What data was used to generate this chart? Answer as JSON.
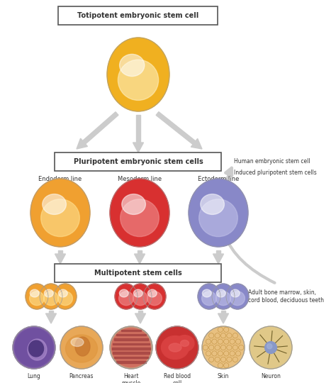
{
  "background_color": "#ffffff",
  "title_box": "Totipotent embryonic stem cell",
  "pluripotent_box": "Pluripotent embryonic stem cells",
  "multipotent_box": "Multipotent stem cells",
  "endoderm_label": "Endoderm line",
  "mesoderm_label": "Mesoderm line",
  "ectoderm_label": "Ectoderm line",
  "human_embryonic_label": "Human embryonic stem cell",
  "induced_label": "Induced pluripotent stem cells",
  "adult_label": "Adult bone marrow, skin,\ncord blood, deciduous teeth",
  "cell_labels": [
    "Lung",
    "Pancreas",
    "Heart\nmuscle",
    "Red blood\ncell",
    "Skin",
    "Neuron"
  ],
  "arrow_color": "#CCCCCC",
  "arrow_edge": "#AAAAAA",
  "box_edge_color": "#555555",
  "label_color": "#333333",
  "totipotent_base": "#F0B020",
  "totipotent_mid": "#E89020",
  "totipotent_hi": "#FFF0C0",
  "endoderm_base": "#F0A030",
  "endoderm_mid": "#E07820",
  "endoderm_hi": "#FFE090",
  "mesoderm_base": "#D83030",
  "mesoderm_mid": "#C02020",
  "mesoderm_hi": "#F09090",
  "ectoderm_base": "#8888C8",
  "ectoderm_mid": "#6060A0",
  "ectoderm_hi": "#C0C0E8",
  "multi_orange_base": "#F0A030",
  "multi_red_base": "#D83030",
  "multi_blue_base": "#8888C8"
}
